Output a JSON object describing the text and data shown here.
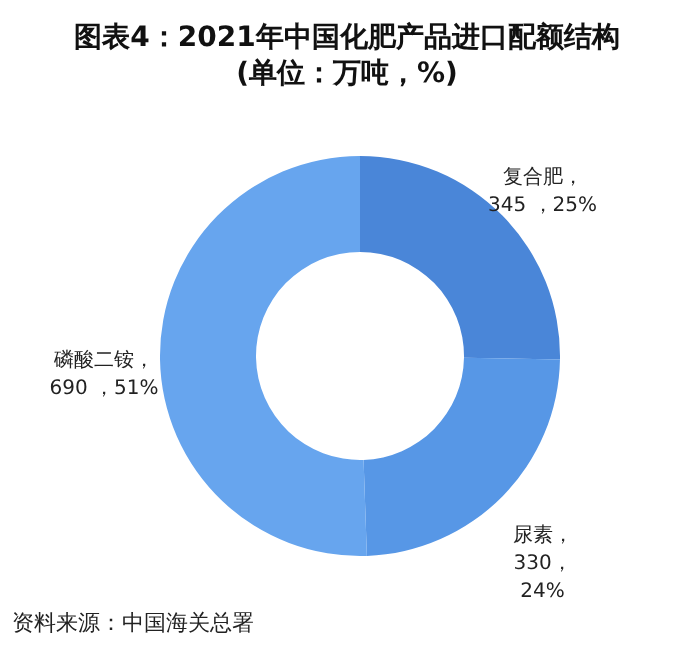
{
  "chart_data": {
    "type": "donut",
    "title": "图表4：2021年中国化肥产品进口配额结构\n(单位：万吨，%)",
    "categories": [
      "复合肥",
      "尿素",
      "磷酸二铵"
    ],
    "values": [
      345,
      330,
      690
    ],
    "value_labels": [
      "，\n345 ，25%",
      "，\n330，\n24%",
      "，\n690 ，51%"
    ],
    "colors": [
      "#4a86d8",
      "#5797e6",
      "#67a5ee"
    ],
    "annotations": [
      "资料来源：中国海关总署"
    ]
  }
}
